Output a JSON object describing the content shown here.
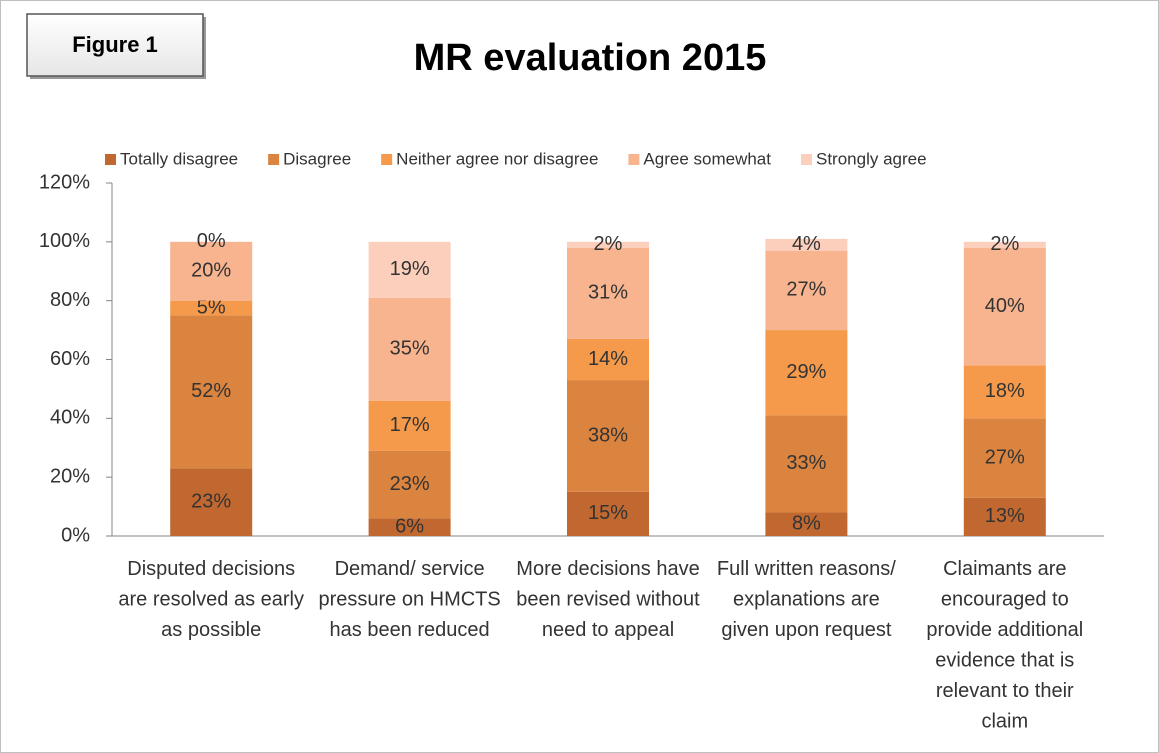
{
  "chart_data": {
    "type": "stacked_bar",
    "title": "MR evaluation 2015",
    "figure_label": "Figure 1",
    "categories": [
      "Disputed decisions are resolved as early as possible",
      "Demand/ service pressure on HMCTS has been reduced",
      "More decisions have been revised without need to appeal",
      "Full written reasons/ explanations are given upon request",
      "Claimants are encouraged to provide additional evidence that is relevant to their claim"
    ],
    "series": [
      {
        "name": "Totally disagree",
        "color": "#c0682f",
        "values": [
          23,
          6,
          15,
          8,
          13
        ],
        "value_labels": [
          "23%",
          "6%",
          "15%",
          "8%",
          "13%"
        ]
      },
      {
        "name": "Disagree",
        "color": "#db843f",
        "values": [
          52,
          23,
          38,
          33,
          27
        ],
        "value_labels": [
          "52%",
          "23%",
          "38%",
          "33%",
          "27%"
        ]
      },
      {
        "name": "Neither agree nor disagree",
        "color": "#f5994a",
        "values": [
          5,
          17,
          14,
          29,
          18
        ],
        "value_labels": [
          "5%",
          "17%",
          "14%",
          "29%",
          "18%"
        ]
      },
      {
        "name": "Agree somewhat",
        "color": "#f8b48f",
        "values": [
          20,
          35,
          31,
          27,
          40
        ],
        "value_labels": [
          "20%",
          "35%",
          "31%",
          "27%",
          "40%"
        ]
      },
      {
        "name": "Strongly agree",
        "color": "#fbcfbc",
        "values": [
          0,
          19,
          2,
          4,
          2
        ],
        "value_labels": [
          "0%",
          "19%",
          "2%",
          "4%",
          "2%"
        ]
      }
    ],
    "ylim": [
      0,
      120
    ],
    "yticks": [
      {
        "value": 0,
        "label": "0%"
      },
      {
        "value": 20,
        "label": "20%"
      },
      {
        "value": 40,
        "label": "40%"
      },
      {
        "value": 60,
        "label": "60%"
      },
      {
        "value": 80,
        "label": "80%"
      },
      {
        "value": 100,
        "label": "100%"
      },
      {
        "value": 120,
        "label": "120%"
      }
    ],
    "grid": false,
    "legend": "top"
  }
}
